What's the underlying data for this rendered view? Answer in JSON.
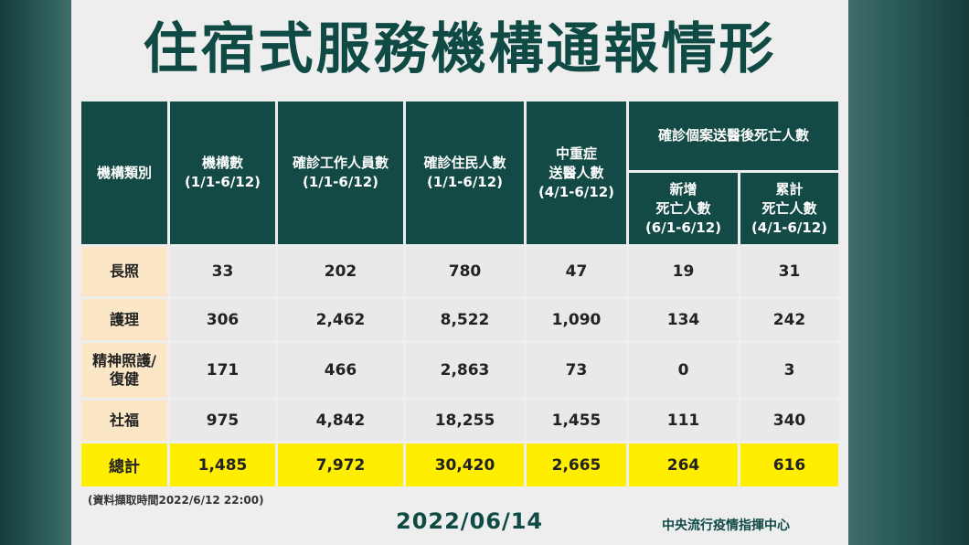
{
  "title": "住宿式服務機構通報情形",
  "chart_data": {
    "type": "table",
    "headers": {
      "category": "機構類別",
      "institutions": [
        "機構數",
        "(1/1-6/12)"
      ],
      "staff_cases": [
        "確診工作人員數",
        "(1/1-6/12)"
      ],
      "resident_cases": [
        "確診住民人數",
        "(1/1-6/12)"
      ],
      "severe": [
        "中重症",
        "送醫人數",
        "(4/1-6/12)"
      ],
      "deaths_group": "確診個案送醫後死亡人數",
      "deaths_new": [
        "新增",
        "死亡人數",
        "(6/1-6/12)"
      ],
      "deaths_cumulative": [
        "累計",
        "死亡人數",
        "(4/1-6/12)"
      ]
    },
    "rows": [
      {
        "category": [
          "長照"
        ],
        "values": [
          "33",
          "202",
          "780",
          "47",
          "19",
          "31"
        ]
      },
      {
        "category": [
          "護理"
        ],
        "values": [
          "306",
          "2,462",
          "8,522",
          "1,090",
          "134",
          "242"
        ]
      },
      {
        "category": [
          "精神照護/",
          "復健"
        ],
        "values": [
          "171",
          "466",
          "2,863",
          "73",
          "0",
          "3"
        ]
      },
      {
        "category": [
          "社福"
        ],
        "values": [
          "975",
          "4,842",
          "18,255",
          "1,455",
          "111",
          "340"
        ]
      },
      {
        "category": [
          "總計"
        ],
        "values": [
          "1,485",
          "7,972",
          "30,420",
          "2,665",
          "264",
          "616"
        ]
      }
    ],
    "colors": {
      "header_bg": "#134a45",
      "category_bg": "#fbe7c5",
      "total_bg": "#ffee00",
      "cell_bg": "#e9e9e9",
      "title": "#0f4a45"
    }
  },
  "footer": {
    "note": "(資料擷取時間2022/6/12 22:00)",
    "date": "2022/06/14",
    "org": "中央流行疫情指揮中心"
  }
}
